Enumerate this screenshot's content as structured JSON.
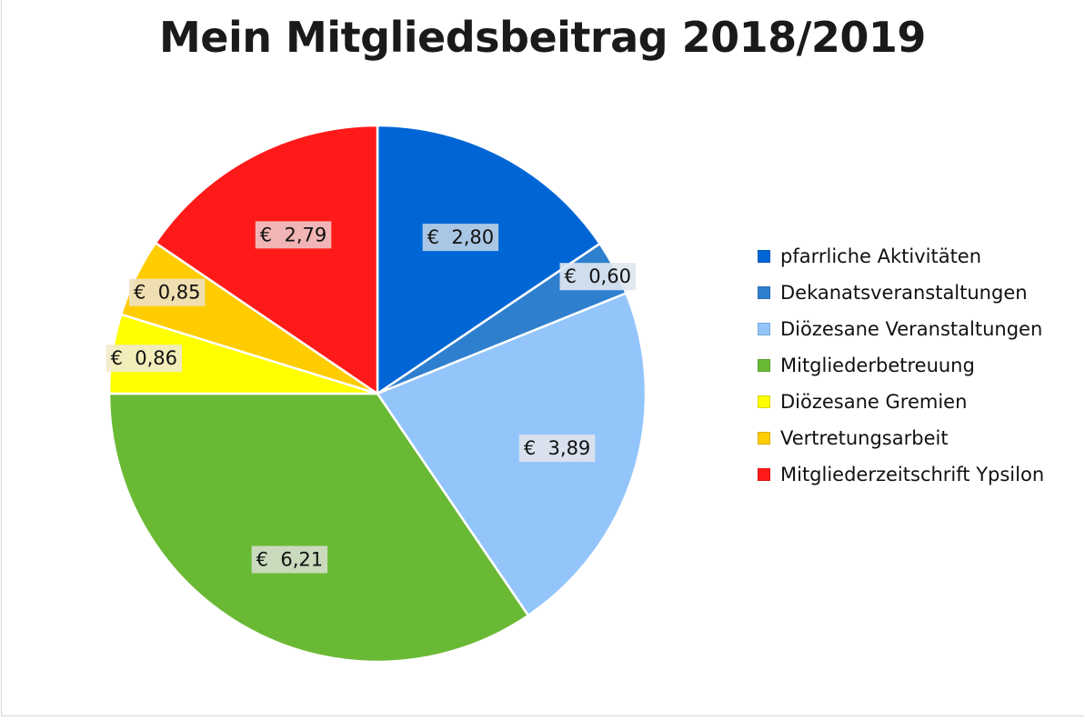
{
  "chart_data": {
    "type": "pie",
    "title": "Mein Mitgliedsbeitrag 2018/2019",
    "currency_prefix": "€",
    "start_angle": "12 o'clock",
    "direction": "clockwise",
    "legend_position": "right",
    "slices": [
      {
        "name": "pfarrliche Aktivitäten",
        "value": 2.8,
        "label": "€  2,80",
        "color": "#0066d6",
        "label_bg": "#b7cfe6"
      },
      {
        "name": "Dekanatsveranstaltungen",
        "value": 0.6,
        "label": "€  0,60",
        "color": "#2f7fcf",
        "label_bg": "#dde6f0"
      },
      {
        "name": "Diözesane Veranstaltungen",
        "value": 3.89,
        "label": "€  3,89",
        "color": "#93c5fb",
        "label_bg": "#dde3ec"
      },
      {
        "name": "Mitgliederbetreuung",
        "value": 6.21,
        "label": "€  6,21",
        "color": "#6ab934",
        "label_bg": "#d3dcc8"
      },
      {
        "name": "Diözesane Gremien",
        "value": 0.86,
        "label": "€  0,86",
        "color": "#ffff00",
        "label_bg": "#f1ebc9"
      },
      {
        "name": "Vertretungsarbeit",
        "value": 0.85,
        "label": "€  0,85",
        "color": "#ffcc00",
        "label_bg": "#efe1bf"
      },
      {
        "name": "Mitgliederzeitschrift Ypsilon",
        "value": 2.79,
        "label": "€  2,79",
        "color": "#ff1a1a",
        "label_bg": "#f1c2c2"
      }
    ],
    "total": 18.0
  }
}
